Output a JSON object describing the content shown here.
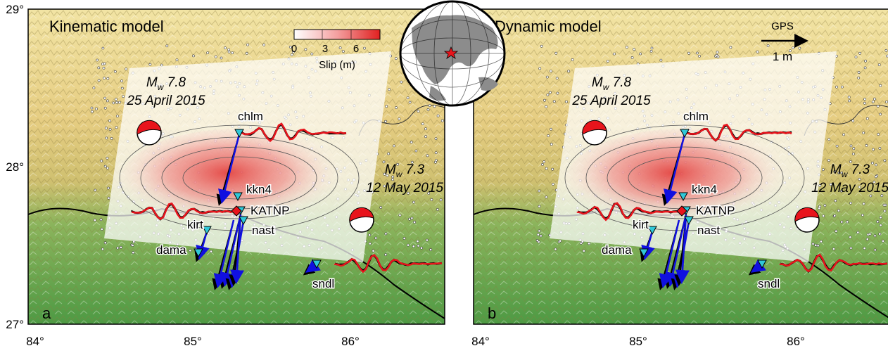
{
  "axes": {
    "lat_labels": [
      "29°",
      "28°",
      "27°"
    ],
    "lon_labels": [
      "84°",
      "85°",
      "86°"
    ]
  },
  "colorbar": {
    "ticks": [
      "0",
      "3",
      "6"
    ],
    "label": "Slip (m)",
    "colors": [
      "#ffffff",
      "#f6b0b0",
      "#e02020"
    ]
  },
  "gps_scale": {
    "title": "GPS",
    "length_label": "1 m"
  },
  "globe": {
    "epicenter_marker": "red-star"
  },
  "panels": [
    {
      "title": "Kinematic model",
      "panel_letter": "a",
      "mainshock": {
        "mw": "M",
        "mw_sub": "w",
        "mw_value": " 7.8",
        "date": "25 April 2015"
      },
      "aftershock": {
        "mw": "M",
        "mw_sub": "w",
        "mw_value": " 7.3",
        "date": "12 May 2015"
      },
      "stations": [
        "chlm",
        "kkn4",
        "KATNP",
        "kirt",
        "nast",
        "dama",
        "sndl"
      ]
    },
    {
      "title": "Dynamic model",
      "panel_letter": "b",
      "mainshock": {
        "mw": "M",
        "mw_sub": "w",
        "mw_value": " 7.8",
        "date": "25 April 2015"
      },
      "aftershock": {
        "mw": "M",
        "mw_sub": "w",
        "mw_value": " 7.3",
        "date": "12 May 2015"
      },
      "stations": [
        "chlm",
        "kkn4",
        "KATNP",
        "kirt",
        "nast",
        "dama",
        "sndl"
      ]
    }
  ],
  "colors": {
    "observed_waveform": "#000000",
    "synthetic_waveform": "#e8141c",
    "gps_arrow_model": "#1010e0",
    "gps_arrow_observed": "#000000",
    "station_marker": "#30c8d8",
    "epicenter": "#e8141c"
  }
}
